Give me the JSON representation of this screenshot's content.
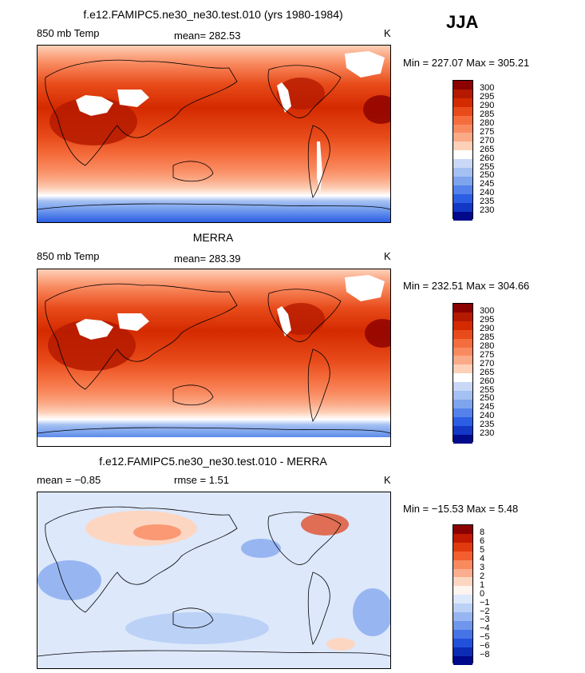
{
  "season": "JJA",
  "unit": "K",
  "panels": [
    {
      "title": "f.e12.FAMIPC5.ne30_ne30.test.010 (yrs 1980-1984)",
      "left_label": "850 mb Temp",
      "center_label": "mean= 282.53",
      "right_label": "K",
      "minmax": "Min = 227.07 Max = 305.21",
      "type": "abs"
    },
    {
      "title": "MERRA",
      "left_label": "850 mb Temp",
      "center_label": "mean= 283.39",
      "right_label": "K",
      "minmax": "Min = 232.51 Max = 304.66",
      "type": "abs"
    },
    {
      "title": "f.e12.FAMIPC5.ne30_ne30.test.010 - MERRA",
      "left_label": "mean =   −0.85",
      "center_label": "rmse =    1.51",
      "right_label": "K",
      "minmax": "Min = −15.53 Max =   5.48",
      "type": "diff"
    }
  ],
  "colorbars": {
    "abs": {
      "labels": [
        "300",
        "295",
        "290",
        "285",
        "280",
        "275",
        "270",
        "265",
        "260",
        "255",
        "250",
        "245",
        "240",
        "235",
        "230"
      ],
      "colors": [
        "#8b0000",
        "#b51a00",
        "#d42a00",
        "#e84b1a",
        "#f56d3d",
        "#f98a60",
        "#fbaa88",
        "#fdd0b8",
        "#ffffff",
        "#c9d8f6",
        "#a5c0f2",
        "#7ea4ee",
        "#5482ea",
        "#2c5ee3",
        "#1338c6",
        "#000a8b"
      ]
    },
    "diff": {
      "labels": [
        "8",
        "6",
        "5",
        "4",
        "3",
        "2",
        "1",
        "0",
        "−1",
        "−2",
        "−3",
        "−4",
        "−5",
        "−6",
        "−8"
      ],
      "colors": [
        "#8b0000",
        "#c21a00",
        "#e03a0e",
        "#f25e2e",
        "#f98a60",
        "#fbae8e",
        "#fdd6c2",
        "#fff4ee",
        "#dde8fb",
        "#bcd1f6",
        "#97b6f1",
        "#6f96ec",
        "#4674e6",
        "#2150db",
        "#0c2cb4",
        "#00088b"
      ]
    }
  }
}
